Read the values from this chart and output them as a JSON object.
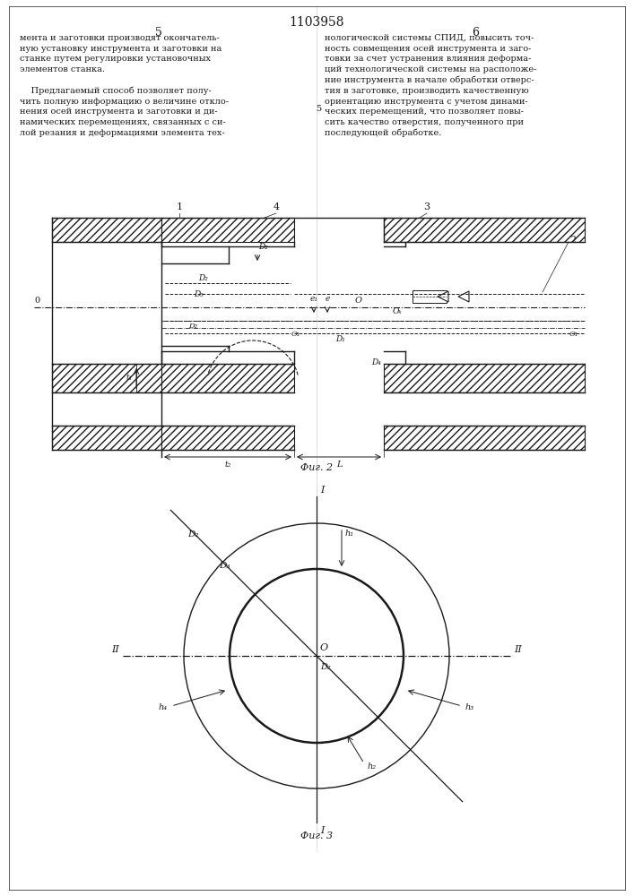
{
  "title": "1103958",
  "page_col_left": "5",
  "page_col_right": "6",
  "fig2_caption": "Фиг. 2",
  "fig3_caption": "Фиг. 3",
  "text_left": "мента и заготовки производят окончатель-\nную установку инструмента и заготовки на\nстанке путем регулировки установочных\nэлементов станка.\n\n    Предлагаемый способ позволяет полу-\nчить полную информацию о величине откло-\nнения осей инструмента и заготовки и ди-\nнамических перемещениях, связанных с си-\nлой резания и деформациями элемента тех-",
  "text_right": "нологической системы СПИД, повысить точ-\nность совмещения осей инструмента и заго-\nтовки за счет устранения влияния деформа-\nций технологической системы на расположе-\nние инструмента в начале обработки отверс-\nтия в заготовке, производить качественную\nориентацию инструмента с учетом динами-\nческих перемещений, что позволяет повы-\nсить качество отверстия, полученного при\nпоследующей обработке.",
  "bg_color": "#ffffff",
  "line_color": "#1a1a1a"
}
